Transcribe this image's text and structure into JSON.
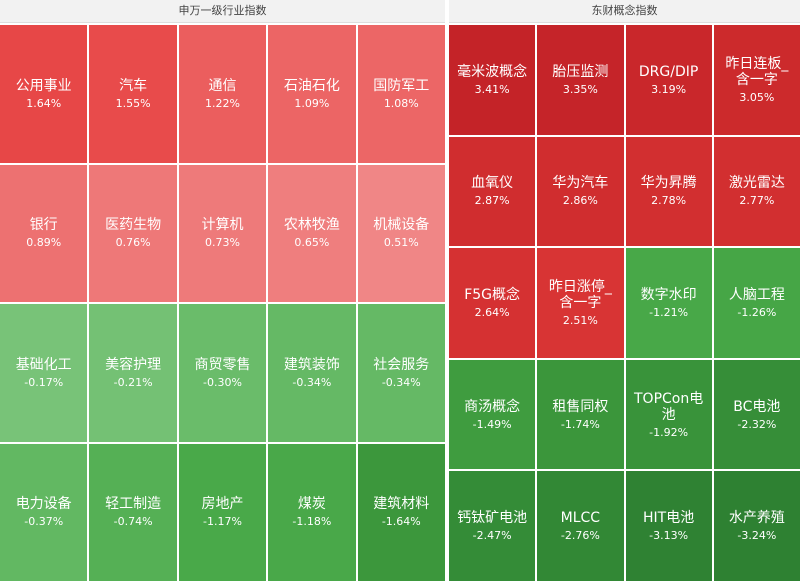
{
  "panels": [
    {
      "title": "申万一级行业指数",
      "tiles": [
        {
          "name": "公用事业",
          "change": "1.64%"
        },
        {
          "name": "汽车",
          "change": "1.55%"
        },
        {
          "name": "通信",
          "change": "1.22%"
        },
        {
          "name": "石油石化",
          "change": "1.09%"
        },
        {
          "name": "国防军工",
          "change": "1.08%"
        },
        {
          "name": "银行",
          "change": "0.89%"
        },
        {
          "name": "医药生物",
          "change": "0.76%"
        },
        {
          "name": "计算机",
          "change": "0.73%"
        },
        {
          "name": "农林牧渔",
          "change": "0.65%"
        },
        {
          "name": "机械设备",
          "change": "0.51%"
        },
        {
          "name": "基础化工",
          "change": "-0.17%"
        },
        {
          "name": "美容护理",
          "change": "-0.21%"
        },
        {
          "name": "商贸零售",
          "change": "-0.30%"
        },
        {
          "name": "建筑装饰",
          "change": "-0.34%"
        },
        {
          "name": "社会服务",
          "change": "-0.34%"
        },
        {
          "name": "电力设备",
          "change": "-0.37%"
        },
        {
          "name": "轻工制造",
          "change": "-0.74%"
        },
        {
          "name": "房地产",
          "change": "-1.17%"
        },
        {
          "name": "煤炭",
          "change": "-1.18%"
        },
        {
          "name": "建筑材料",
          "change": "-1.64%"
        }
      ]
    },
    {
      "title": "东财概念指数",
      "tiles": [
        {
          "name": "毫米波概念",
          "change": "3.41%"
        },
        {
          "name": "胎压监测",
          "change": "3.35%"
        },
        {
          "name": "DRG/DIP",
          "change": "3.19%"
        },
        {
          "name": "昨日连板_含一字",
          "change": "3.05%"
        },
        {
          "name": "血氧仪",
          "change": "2.87%"
        },
        {
          "name": "华为汽车",
          "change": "2.86%"
        },
        {
          "name": "华为昇腾",
          "change": "2.78%"
        },
        {
          "name": "激光雷达",
          "change": "2.77%"
        },
        {
          "name": "F5G概念",
          "change": "2.64%"
        },
        {
          "name": "昨日涨停_含一字",
          "change": "2.51%"
        },
        {
          "name": "数字水印",
          "change": "-1.21%"
        },
        {
          "name": "人脑工程",
          "change": "-1.26%"
        },
        {
          "name": "商汤概念",
          "change": "-1.49%"
        },
        {
          "name": "租售同权",
          "change": "-1.74%"
        },
        {
          "name": "TOPCon电池",
          "change": "-1.92%"
        },
        {
          "name": "BC电池",
          "change": "-2.32%"
        },
        {
          "name": "钙钛矿电池",
          "change": "-2.47%"
        },
        {
          "name": "MLCC",
          "change": "-2.76%"
        },
        {
          "name": "HIT电池",
          "change": "-3.13%"
        },
        {
          "name": "水产养殖",
          "change": "-3.24%"
        }
      ]
    }
  ]
}
